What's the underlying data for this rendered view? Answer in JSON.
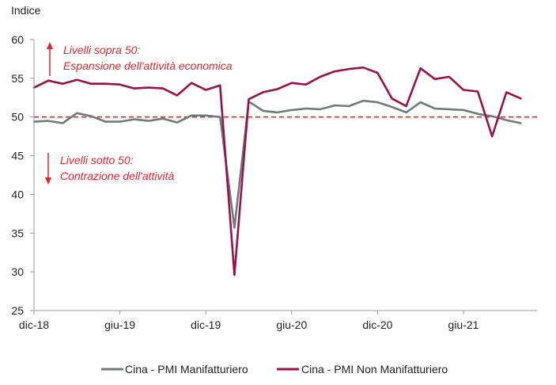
{
  "chart_data": {
    "type": "line",
    "ylabel": "Indice",
    "ylim": [
      25,
      60
    ],
    "yticks": [
      25,
      30,
      35,
      40,
      45,
      50,
      55,
      60
    ],
    "x": [
      "dic-18",
      "gen-19",
      "feb-19",
      "mar-19",
      "apr-19",
      "mag-19",
      "giu-19",
      "lug-19",
      "ago-19",
      "set-19",
      "ott-19",
      "nov-19",
      "dic-19",
      "gen-20",
      "feb-20",
      "mar-20",
      "apr-20",
      "mag-20",
      "giu-20",
      "lug-20",
      "ago-20",
      "set-20",
      "ott-20",
      "nov-20",
      "dic-20",
      "gen-21",
      "feb-21",
      "mar-21",
      "apr-21",
      "mag-21",
      "giu-21",
      "lug-21",
      "ago-21",
      "set-21",
      "ott-21"
    ],
    "xtick_labels": [
      {
        "label": "dic-18",
        "index": 0
      },
      {
        "label": "giu-19",
        "index": 6
      },
      {
        "label": "dic-19",
        "index": 12
      },
      {
        "label": "giu-20",
        "index": 18
      },
      {
        "label": "dic-20",
        "index": 24
      },
      {
        "label": "giu-21",
        "index": 30
      }
    ],
    "series": [
      {
        "name": "Cina - PMI  Manifatturiero",
        "color": "#6f7b7a",
        "values": [
          49.4,
          49.5,
          49.2,
          50.5,
          50.1,
          49.4,
          49.4,
          49.7,
          49.5,
          49.8,
          49.3,
          50.2,
          50.2,
          50.0,
          35.7,
          52.0,
          50.8,
          50.6,
          50.9,
          51.1,
          51.0,
          51.5,
          51.4,
          52.1,
          51.9,
          51.3,
          50.6,
          51.9,
          51.1,
          51.0,
          50.9,
          50.4,
          50.1,
          49.6,
          49.2
        ]
      },
      {
        "name": "Cina - PMI Non Manifatturiero",
        "color": "#9a1048",
        "values": [
          53.8,
          54.7,
          54.3,
          54.8,
          54.3,
          54.3,
          54.2,
          53.7,
          53.8,
          53.7,
          52.8,
          54.4,
          53.5,
          54.1,
          29.6,
          52.3,
          53.2,
          53.6,
          54.4,
          54.2,
          55.2,
          55.9,
          56.2,
          56.4,
          55.7,
          52.4,
          51.4,
          56.3,
          54.9,
          55.2,
          53.5,
          53.3,
          47.5,
          53.2,
          52.4
        ]
      }
    ],
    "reference_line": {
      "y": 50,
      "color": "#e3242b",
      "style": "dashed"
    },
    "annotations": {
      "above": [
        "Livelli sopra 50:",
        "Espansione dell'attività economica"
      ],
      "below": [
        "Livelli sotto 50:",
        "Contrazione dell'attività"
      ],
      "color": "#e3242b"
    },
    "legend_position": "bottom",
    "grid": false
  }
}
